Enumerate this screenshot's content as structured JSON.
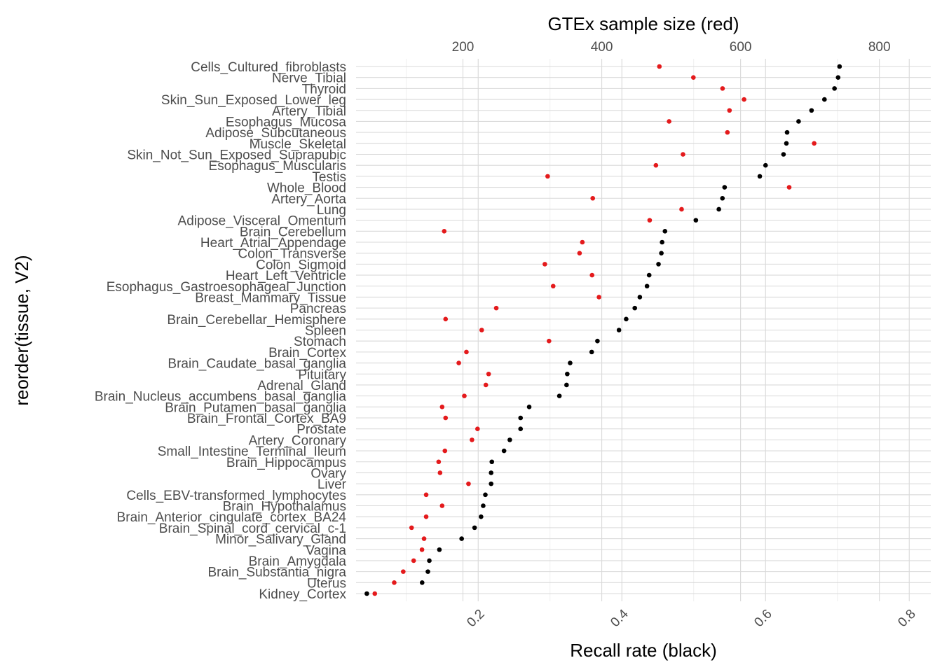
{
  "chart_data": {
    "type": "scatter",
    "xlabel": "Recall rate (black)",
    "x2label": "GTEx sample size (red)",
    "ylabel": "reorder(tissue, V2)",
    "xlim": [
      0.03,
      0.83
    ],
    "xticks": [
      0.2,
      0.4,
      0.6,
      0.8
    ],
    "xtick_labels": [
      "0.2",
      "0.4",
      "0.6",
      "0.8"
    ],
    "x2lim": [
      46,
      874
    ],
    "x2ticks": [
      200,
      400,
      600,
      800
    ],
    "x2tick_labels": [
      "200",
      "400",
      "600",
      "800"
    ],
    "grid": true,
    "colors": {
      "recall": "#000000",
      "sample_size": "#e41a1c"
    },
    "categories": [
      "Cells_Cultured_fibroblasts",
      "Nerve_Tibial",
      "Thyroid",
      "Skin_Sun_Exposed_Lower_leg",
      "Artery_Tibial",
      "Esophagus_Mucosa",
      "Adipose_Subcutaneous",
      "Muscle_Skeletal",
      "Skin_Not_Sun_Exposed_Suprapubic",
      "Esophagus_Muscularis",
      "Testis",
      "Whole_Blood",
      "Artery_Aorta",
      "Lung",
      "Adipose_Visceral_Omentum",
      "Brain_Cerebellum",
      "Heart_Atrial_Appendage",
      "Colon_Transverse",
      "Colon_Sigmoid",
      "Heart_Left_Ventricle",
      "Esophagus_Gastroesophageal_Junction",
      "Breast_Mammary_Tissue",
      "Pancreas",
      "Brain_Cerebellar_Hemisphere",
      "Spleen",
      "Stomach",
      "Brain_Cortex",
      "Brain_Caudate_basal_ganglia",
      "Pituitary",
      "Adrenal_Gland",
      "Brain_Nucleus_accumbens_basal_ganglia",
      "Brain_Putamen_basal_ganglia",
      "Brain_Frontal_Cortex_BA9",
      "Prostate",
      "Artery_Coronary",
      "Small_Intestine_Terminal_Ileum",
      "Brain_Hippocampus",
      "Ovary",
      "Liver",
      "Cells_EBV-transformed_lymphocytes",
      "Brain_Hypothalamus",
      "Brain_Anterior_cingulate_cortex_BA24",
      "Brain_Spinal_cord_cervical_c-1",
      "Minor_Salivary_Gland",
      "Vagina",
      "Brain_Amygdala",
      "Brain_Substantia_nigra",
      "Uterus",
      "Kidney_Cortex"
    ],
    "series": [
      {
        "name": "Recall rate (black)",
        "axis": "bottom",
        "values": [
          0.703,
          0.701,
          0.696,
          0.682,
          0.664,
          0.646,
          0.63,
          0.629,
          0.625,
          0.6,
          0.592,
          0.543,
          0.54,
          0.535,
          0.503,
          0.46,
          0.456,
          0.455,
          0.451,
          0.438,
          0.435,
          0.425,
          0.418,
          0.406,
          0.396,
          0.366,
          0.358,
          0.328,
          0.324,
          0.323,
          0.313,
          0.271,
          0.259,
          0.259,
          0.244,
          0.236,
          0.219,
          0.218,
          0.218,
          0.21,
          0.207,
          0.204,
          0.195,
          0.177,
          0.146,
          0.132,
          0.13,
          0.122,
          0.045
        ]
      },
      {
        "name": "GTEx sample size (red)",
        "axis": "top",
        "values": [
          483,
          532,
          574,
          605,
          584,
          497,
          581,
          706,
          517,
          478,
          322,
          670,
          387,
          515,
          469,
          173,
          372,
          368,
          318,
          386,
          330,
          396,
          248,
          175,
          227,
          324,
          205,
          194,
          237,
          233,
          202,
          170,
          175,
          221,
          213,
          174,
          165,
          167,
          208,
          147,
          170,
          147,
          126,
          144,
          141,
          129,
          114,
          101,
          73
        ]
      }
    ]
  }
}
